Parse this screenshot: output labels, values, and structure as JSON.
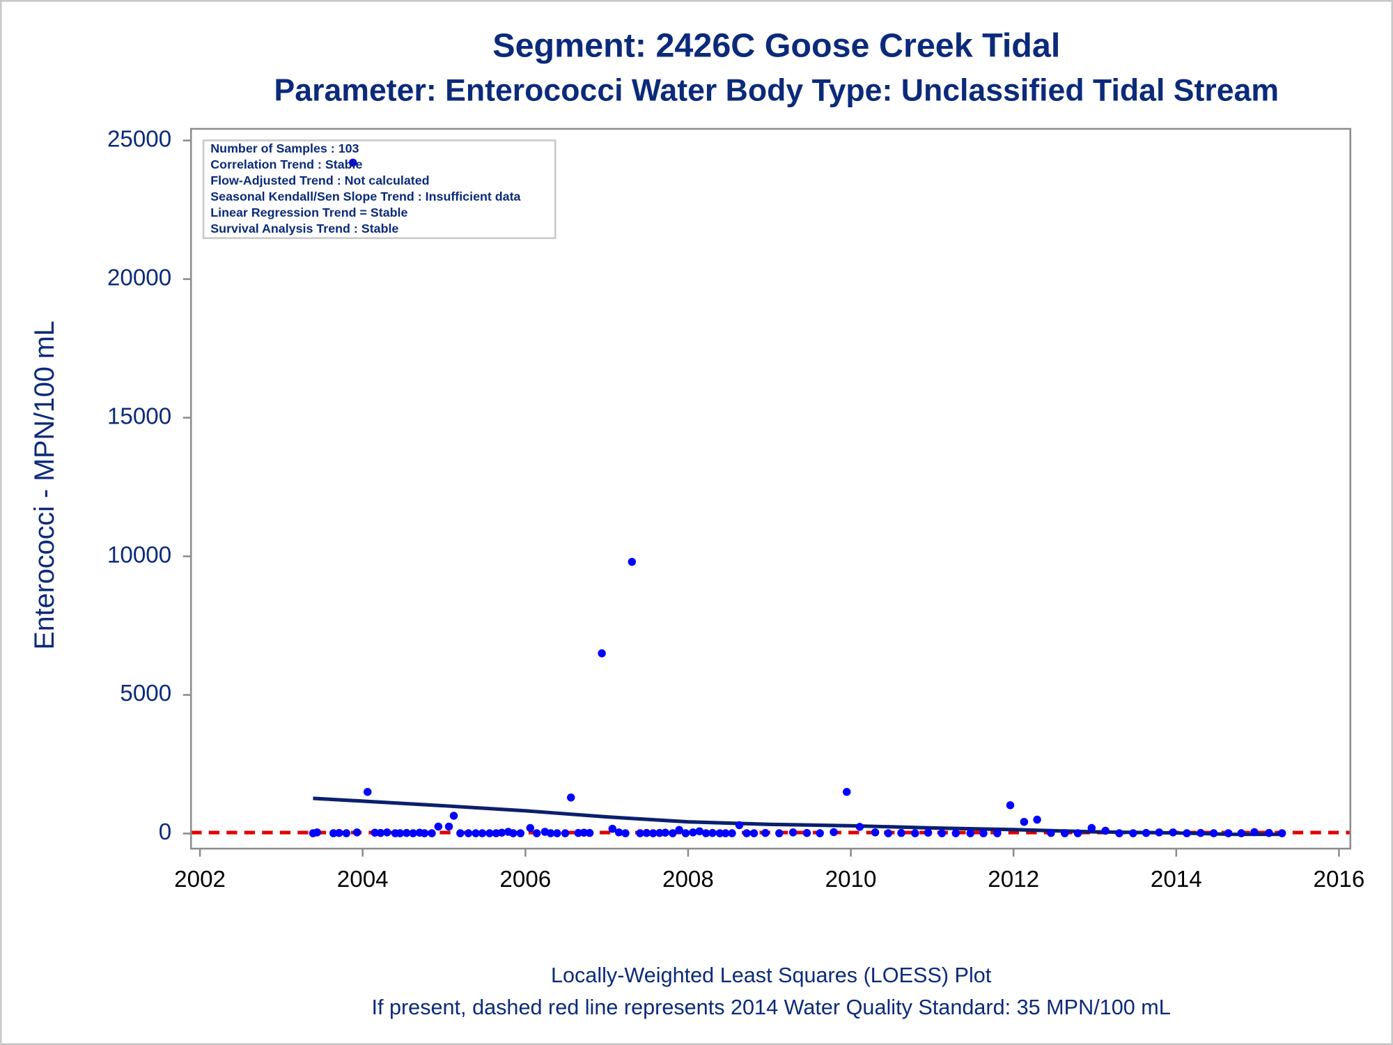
{
  "chart_data": {
    "type": "scatter",
    "title": "Segment: 2426C  Goose Creek Tidal",
    "subtitle": "Parameter: Enterococci   Water Body Type: Unclassified Tidal Stream",
    "y_label": "Enterococci - MPN/100 mL",
    "footnotes": [
      "Locally-Weighted Least Squares (LOESS) Plot",
      "If present, dashed red line represents 2014 Water Quality Standard: 35 MPN/100 mL"
    ],
    "annotations": [
      "Number of Samples : 103",
      "Correlation Trend : Stable",
      "Flow-Adjusted Trend : Not calculated",
      "Seasonal Kendall/Sen Slope Trend : Insufficient data",
      "Linear Regression Trend = Stable",
      "Survival Analysis Trend : Stable"
    ],
    "x": [
      2003.39,
      2003.44,
      2003.64,
      2003.71,
      2003.8,
      2003.88,
      2003.93,
      2004.06,
      2004.15,
      2004.22,
      2004.3,
      2004.4,
      2004.46,
      2004.54,
      2004.62,
      2004.7,
      2004.76,
      2004.85,
      2004.93,
      2005.06,
      2005.12,
      2005.2,
      2005.3,
      2005.39,
      2005.47,
      2005.56,
      2005.64,
      2005.71,
      2005.79,
      2005.85,
      2005.94,
      2006.06,
      2006.14,
      2006.24,
      2006.31,
      2006.39,
      2006.49,
      2006.56,
      2006.65,
      2006.72,
      2006.79,
      2006.94,
      2007.07,
      2007.15,
      2007.23,
      2007.31,
      2007.41,
      2007.49,
      2007.57,
      2007.65,
      2007.72,
      2007.81,
      2007.89,
      2007.97,
      2008.06,
      2008.14,
      2008.22,
      2008.3,
      2008.39,
      2008.46,
      2008.54,
      2008.63,
      2008.72,
      2008.81,
      2008.95,
      2009.12,
      2009.29,
      2009.46,
      2009.62,
      2009.79,
      2009.95,
      2010.11,
      2010.3,
      2010.46,
      2010.62,
      2010.79,
      2010.95,
      2011.12,
      2011.29,
      2011.47,
      2011.63,
      2011.8,
      2011.96,
      2012.13,
      2012.29,
      2012.46,
      2012.63,
      2012.79,
      2012.96,
      2013.13,
      2013.3,
      2013.47,
      2013.63,
      2013.79,
      2013.96,
      2014.13,
      2014.3,
      2014.46,
      2014.64,
      2014.8,
      2014.96,
      2015.14,
      2015.3
    ],
    "values": [
      10,
      40,
      10,
      20,
      10,
      24200,
      40,
      1500,
      30,
      20,
      40,
      10,
      10,
      20,
      10,
      30,
      10,
      10,
      250,
      250,
      640,
      10,
      10,
      10,
      10,
      10,
      10,
      30,
      60,
      10,
      10,
      200,
      10,
      60,
      10,
      10,
      10,
      1300,
      20,
      30,
      20,
      6500,
      170,
      40,
      10,
      9800,
      10,
      20,
      10,
      20,
      30,
      10,
      130,
      10,
      40,
      80,
      10,
      20,
      10,
      10,
      10,
      300,
      10,
      10,
      20,
      10,
      40,
      20,
      10,
      50,
      1500,
      240,
      40,
      10,
      20,
      10,
      30,
      10,
      10,
      10,
      10,
      10,
      1020,
      420,
      500,
      20,
      10,
      10,
      200,
      100,
      10,
      10,
      20,
      40,
      40,
      10,
      20,
      10,
      10,
      10,
      50,
      20,
      10
    ],
    "color": "#0000ff",
    "loess": {
      "x": [
        2003.39,
        2005,
        2006,
        2007,
        2008,
        2009,
        2010,
        2011,
        2012,
        2013,
        2014,
        2014.7,
        2015.3
      ],
      "values": [
        1270,
        1000,
        820,
        600,
        420,
        330,
        280,
        200,
        140,
        60,
        20,
        -30,
        -30
      ],
      "color": "#0a1f6e"
    },
    "reference_line": {
      "value": 35,
      "color": "#e00000"
    },
    "xlim": [
      2001.89,
      2016.14
    ],
    "xticks": [
      2002,
      2004,
      2006,
      2008,
      2010,
      2012,
      2014,
      2016
    ],
    "ylim": [
      -545,
      25420
    ],
    "yticks": [
      0,
      5000,
      10000,
      15000,
      20000,
      25000
    ]
  }
}
